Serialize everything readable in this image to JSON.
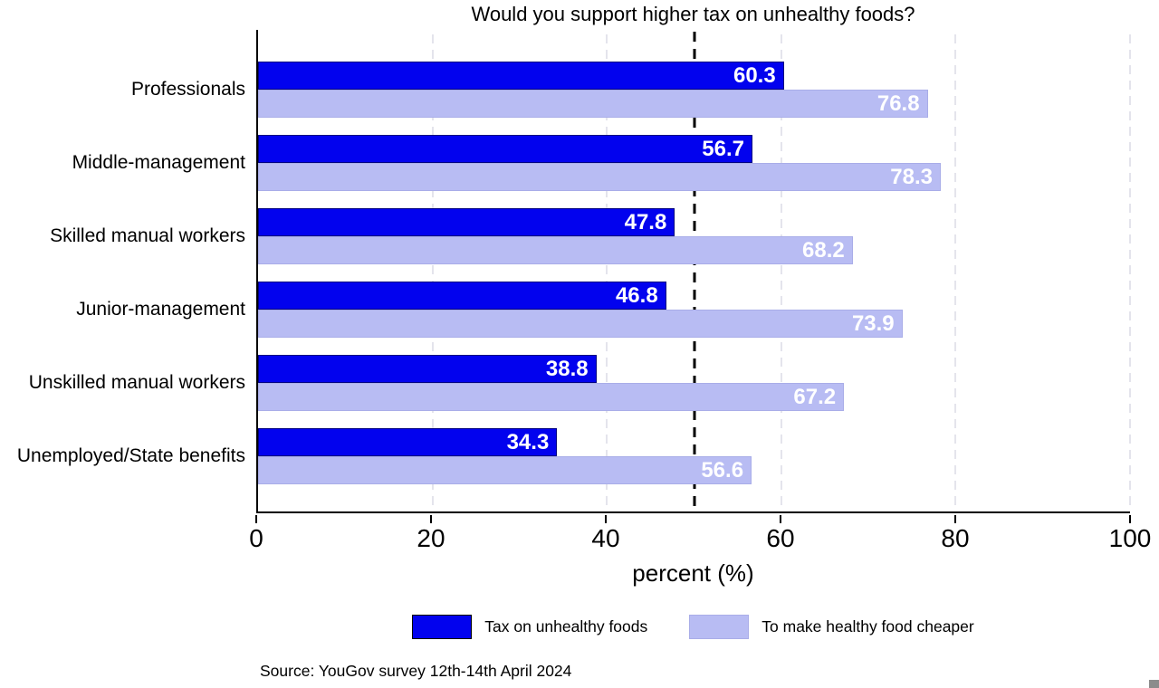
{
  "chart_data": {
    "type": "bar",
    "orientation": "horizontal",
    "title": "Would you support higher tax on unhealthy foods?",
    "xlabel": "percent (%)",
    "xlim": [
      0,
      100
    ],
    "xticks": [
      0,
      20,
      40,
      60,
      80,
      100
    ],
    "reference_line": 50,
    "grid": "vertical-dashed",
    "legend_position": "bottom",
    "categories": [
      "Professionals",
      "Middle-management",
      "Skilled manual workers",
      "Junior-management",
      "Unskilled manual workers",
      "Unemployed/State benefits"
    ],
    "series": [
      {
        "name": "Tax on unhealthy foods",
        "color": "#0202ee",
        "edge_color": "#000080",
        "values": [
          60.3,
          56.7,
          47.8,
          46.8,
          38.8,
          34.3
        ]
      },
      {
        "name": "To make healthy food cheaper",
        "color": "#b8bcf3",
        "edge_color": "#a9ade8",
        "values": [
          76.8,
          78.3,
          68.2,
          73.9,
          67.2,
          56.6
        ]
      }
    ]
  },
  "source_note": "Source: YouGov survey 12th-14th April 2024",
  "colors": {
    "value_label_text": "#ffffff",
    "axis": "#000000",
    "gridline": "#e4e4ec",
    "reference_line": "#000000",
    "corner_handle": "#8c8c8c"
  }
}
